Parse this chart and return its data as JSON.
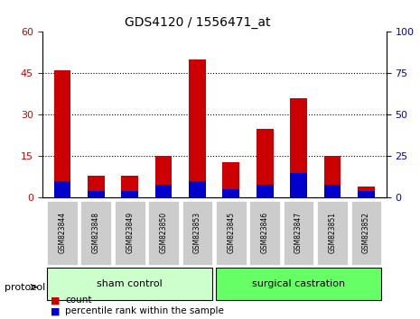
{
  "title": "GDS4120 / 1556471_at",
  "samples": [
    "GSM823844",
    "GSM823848",
    "GSM823849",
    "GSM823850",
    "GSM823853",
    "GSM823845",
    "GSM823846",
    "GSM823847",
    "GSM823851",
    "GSM823852"
  ],
  "count_values": [
    46,
    8,
    8,
    15,
    50,
    13,
    25,
    36,
    15,
    4
  ],
  "percentile_values": [
    10,
    4,
    4,
    8,
    10,
    5,
    8,
    15,
    8,
    4
  ],
  "groups": [
    {
      "label": "sham control",
      "indices": [
        0,
        1,
        2,
        3,
        4
      ],
      "color": "#ccffcc"
    },
    {
      "label": "surgical castration",
      "indices": [
        5,
        6,
        7,
        8,
        9
      ],
      "color": "#66ff66"
    }
  ],
  "left_ylim": [
    0,
    60
  ],
  "right_ylim": [
    0,
    100
  ],
  "left_yticks": [
    0,
    15,
    30,
    45,
    60
  ],
  "right_yticks": [
    0,
    25,
    50,
    75,
    100
  ],
  "left_color": "#cc0000",
  "right_color": "#0000cc",
  "bar_color_red": "#cc0000",
  "bar_color_blue": "#0000cc",
  "dotted_grid_values": [
    15,
    30,
    45
  ],
  "bar_width": 0.5,
  "background_color": "#ffffff",
  "tick_bg_color": "#cccccc",
  "protocol_label": "protocol",
  "legend_count": "count",
  "legend_percentile": "percentile rank within the sample"
}
